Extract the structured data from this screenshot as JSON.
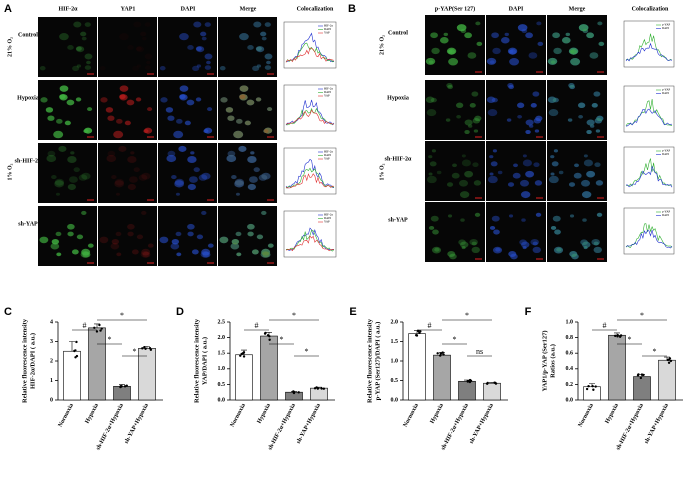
{
  "panel_a": {
    "label": "A",
    "columns": [
      "HIF-2α",
      "YAP1",
      "DAPI",
      "Merge",
      "Colocalization"
    ],
    "rows": [
      "Control",
      "Hypoxia",
      "sh-HIF-2α",
      "sh-YAP"
    ],
    "groups": [
      "21% O₂",
      "1% O₂"
    ],
    "legend": [
      "HIF-2α",
      "DAPI",
      "YAP"
    ]
  },
  "panel_b": {
    "label": "B",
    "columns": [
      "p-YAP(Ser 127)",
      "DAPI",
      "Merge",
      "Colocalization"
    ],
    "rows": [
      "Control",
      "Hypoxia",
      "sh-HIF-2α",
      "sh-YAP"
    ],
    "groups": [
      "21% O₂",
      "1% O₂"
    ],
    "legend": [
      "p-YAP",
      "DAPI"
    ]
  },
  "chart_data": [
    {
      "type": "bar",
      "label": "C",
      "ylabel": [
        "Relative fluorescence intensity",
        "HIF-2α/DAPI ( a.u.)"
      ],
      "categories": [
        "Normoxia",
        "Hypoxia",
        "sh-HIF-2α+Hypoxia",
        "sh-YAP+Hypoxia"
      ],
      "values": [
        2.5,
        3.7,
        0.7,
        2.65
      ],
      "errors": [
        0.5,
        0.2,
        0.1,
        0.1
      ],
      "colors": [
        "#ffffff",
        "#a6a6a6",
        "#7f7f7f",
        "#d9d9d9"
      ],
      "ylim": [
        0,
        4
      ],
      "yticks": [
        0,
        1,
        2,
        3,
        4
      ],
      "annotations": [
        "#",
        "*",
        "*",
        "*"
      ]
    },
    {
      "type": "bar",
      "label": "D",
      "ylabel": [
        "Relative fluorescence intensity",
        "YAP/DAPI ( a.u.)"
      ],
      "categories": [
        "Normoxia",
        "Hypoxia",
        "sh-HIF-2α+Hypoxia",
        "sh-YAP+Hypoxia"
      ],
      "values": [
        1.45,
        2.05,
        0.25,
        0.38
      ],
      "errors": [
        0.15,
        0.12,
        0.03,
        0.03
      ],
      "colors": [
        "#ffffff",
        "#a6a6a6",
        "#7f7f7f",
        "#d9d9d9"
      ],
      "ylim": [
        0,
        2.5
      ],
      "yticks": [
        {
          "value": 0,
          "label": "0.0"
        },
        0.5,
        {
          "value": 1,
          "label": "1.0"
        },
        1.5,
        {
          "value": 2,
          "label": "2.0"
        },
        2.5
      ],
      "annotations": [
        "#",
        "*",
        "*",
        "*"
      ]
    },
    {
      "type": "bar",
      "label": "E",
      "ylabel": [
        "Relative fluorescence intensity",
        "p-YAP (Ser127)/DAPI ( a.u.)"
      ],
      "categories": [
        "Normoxia",
        "Hypoxia",
        "sh-HIF-2α+Hypoxia",
        "sh-YAP+Hypoxia"
      ],
      "values": [
        1.7,
        1.15,
        0.48,
        0.43
      ],
      "errors": [
        0.08,
        0.07,
        0.03,
        0.02
      ],
      "colors": [
        "#ffffff",
        "#a6a6a6",
        "#7f7f7f",
        "#d9d9d9"
      ],
      "ylim": [
        0,
        2
      ],
      "yticks": [
        {
          "value": 0,
          "label": "0.0"
        },
        0.5,
        {
          "value": 1,
          "label": "1.0"
        },
        1.5,
        {
          "value": 2,
          "label": "2.0"
        }
      ],
      "annotations": [
        "#",
        "*",
        "*",
        "ns"
      ]
    },
    {
      "type": "bar",
      "label": "F",
      "ylabel": [
        "YAP1/p-YAP (Ser127)",
        "Ratios (a.u.)"
      ],
      "categories": [
        "Normoxia",
        "Hypoxia",
        "sh-HIF-2α+Hypoxia",
        "sh-YAP+Hypoxia"
      ],
      "values": [
        0.17,
        0.83,
        0.3,
        0.51
      ],
      "errors": [
        0.04,
        0.03,
        0.03,
        0.04
      ],
      "colors": [
        "#ffffff",
        "#a6a6a6",
        "#7f7f7f",
        "#d9d9d9"
      ],
      "ylim": [
        0,
        1
      ],
      "yticks": [
        {
          "value": 0,
          "label": "0.0"
        },
        0.2,
        0.4,
        0.6,
        0.8,
        {
          "value": 1,
          "label": "1.0"
        }
      ],
      "annotations": [
        "#",
        "*",
        "*",
        "*"
      ]
    }
  ]
}
